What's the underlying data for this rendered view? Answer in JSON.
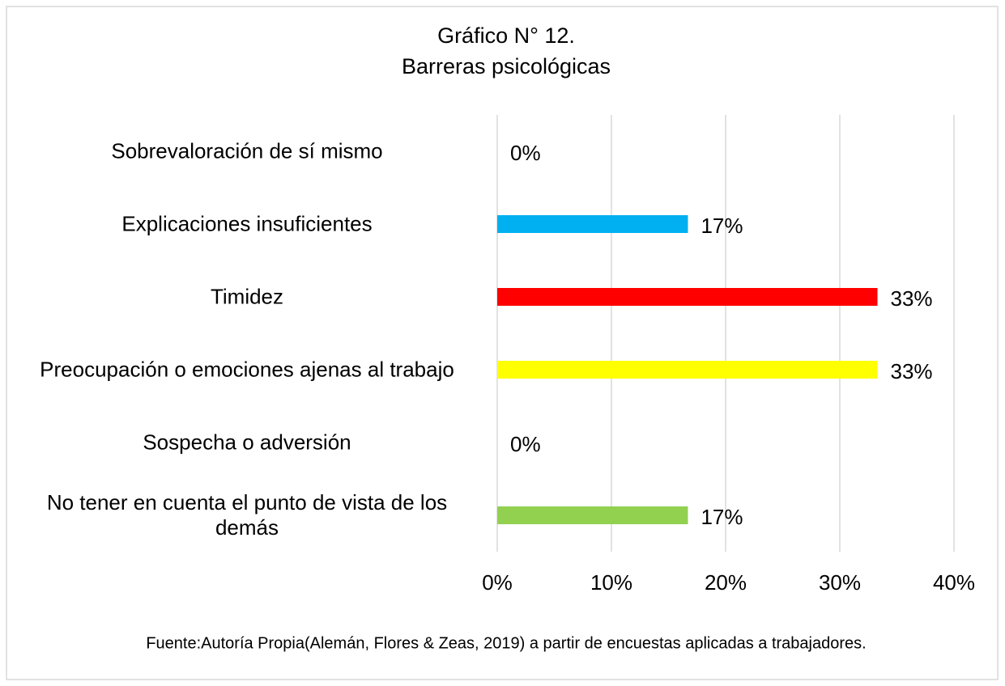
{
  "chart_data": {
    "type": "barh",
    "title": "Gráfico N° 12.",
    "subtitle": "Barreras psicológicas",
    "categories": [
      "Sobrevaloración de sí mismo",
      "Explicaciones insuficientes",
      "Timidez",
      "Preocupación o emociones ajenas al trabajo",
      "Sospecha o adversión",
      "No tener en cuenta el punto de vista de los demás"
    ],
    "values": [
      0,
      16.7,
      33.3,
      33.3,
      0,
      16.7
    ],
    "value_labels": [
      "0%",
      "17%",
      "33%",
      "33%",
      "0%",
      "17%"
    ],
    "colors": [
      "#4472c4",
      "#00b0f0",
      "#ff0000",
      "#ffff00",
      "#ffc000",
      "#92d050"
    ],
    "xlim": [
      0,
      40
    ],
    "xticks": [
      {
        "value": 0,
        "label": "0%"
      },
      {
        "value": 10,
        "label": "10%"
      },
      {
        "value": 20,
        "label": "20%"
      },
      {
        "value": 30,
        "label": "30%"
      },
      {
        "value": 40,
        "label": "40%"
      }
    ],
    "grid": true,
    "source": "Fuente:Autoría Propia(Alemán, Flores & Zeas, 2019) a partir de encuestas aplicadas a trabajadores."
  }
}
